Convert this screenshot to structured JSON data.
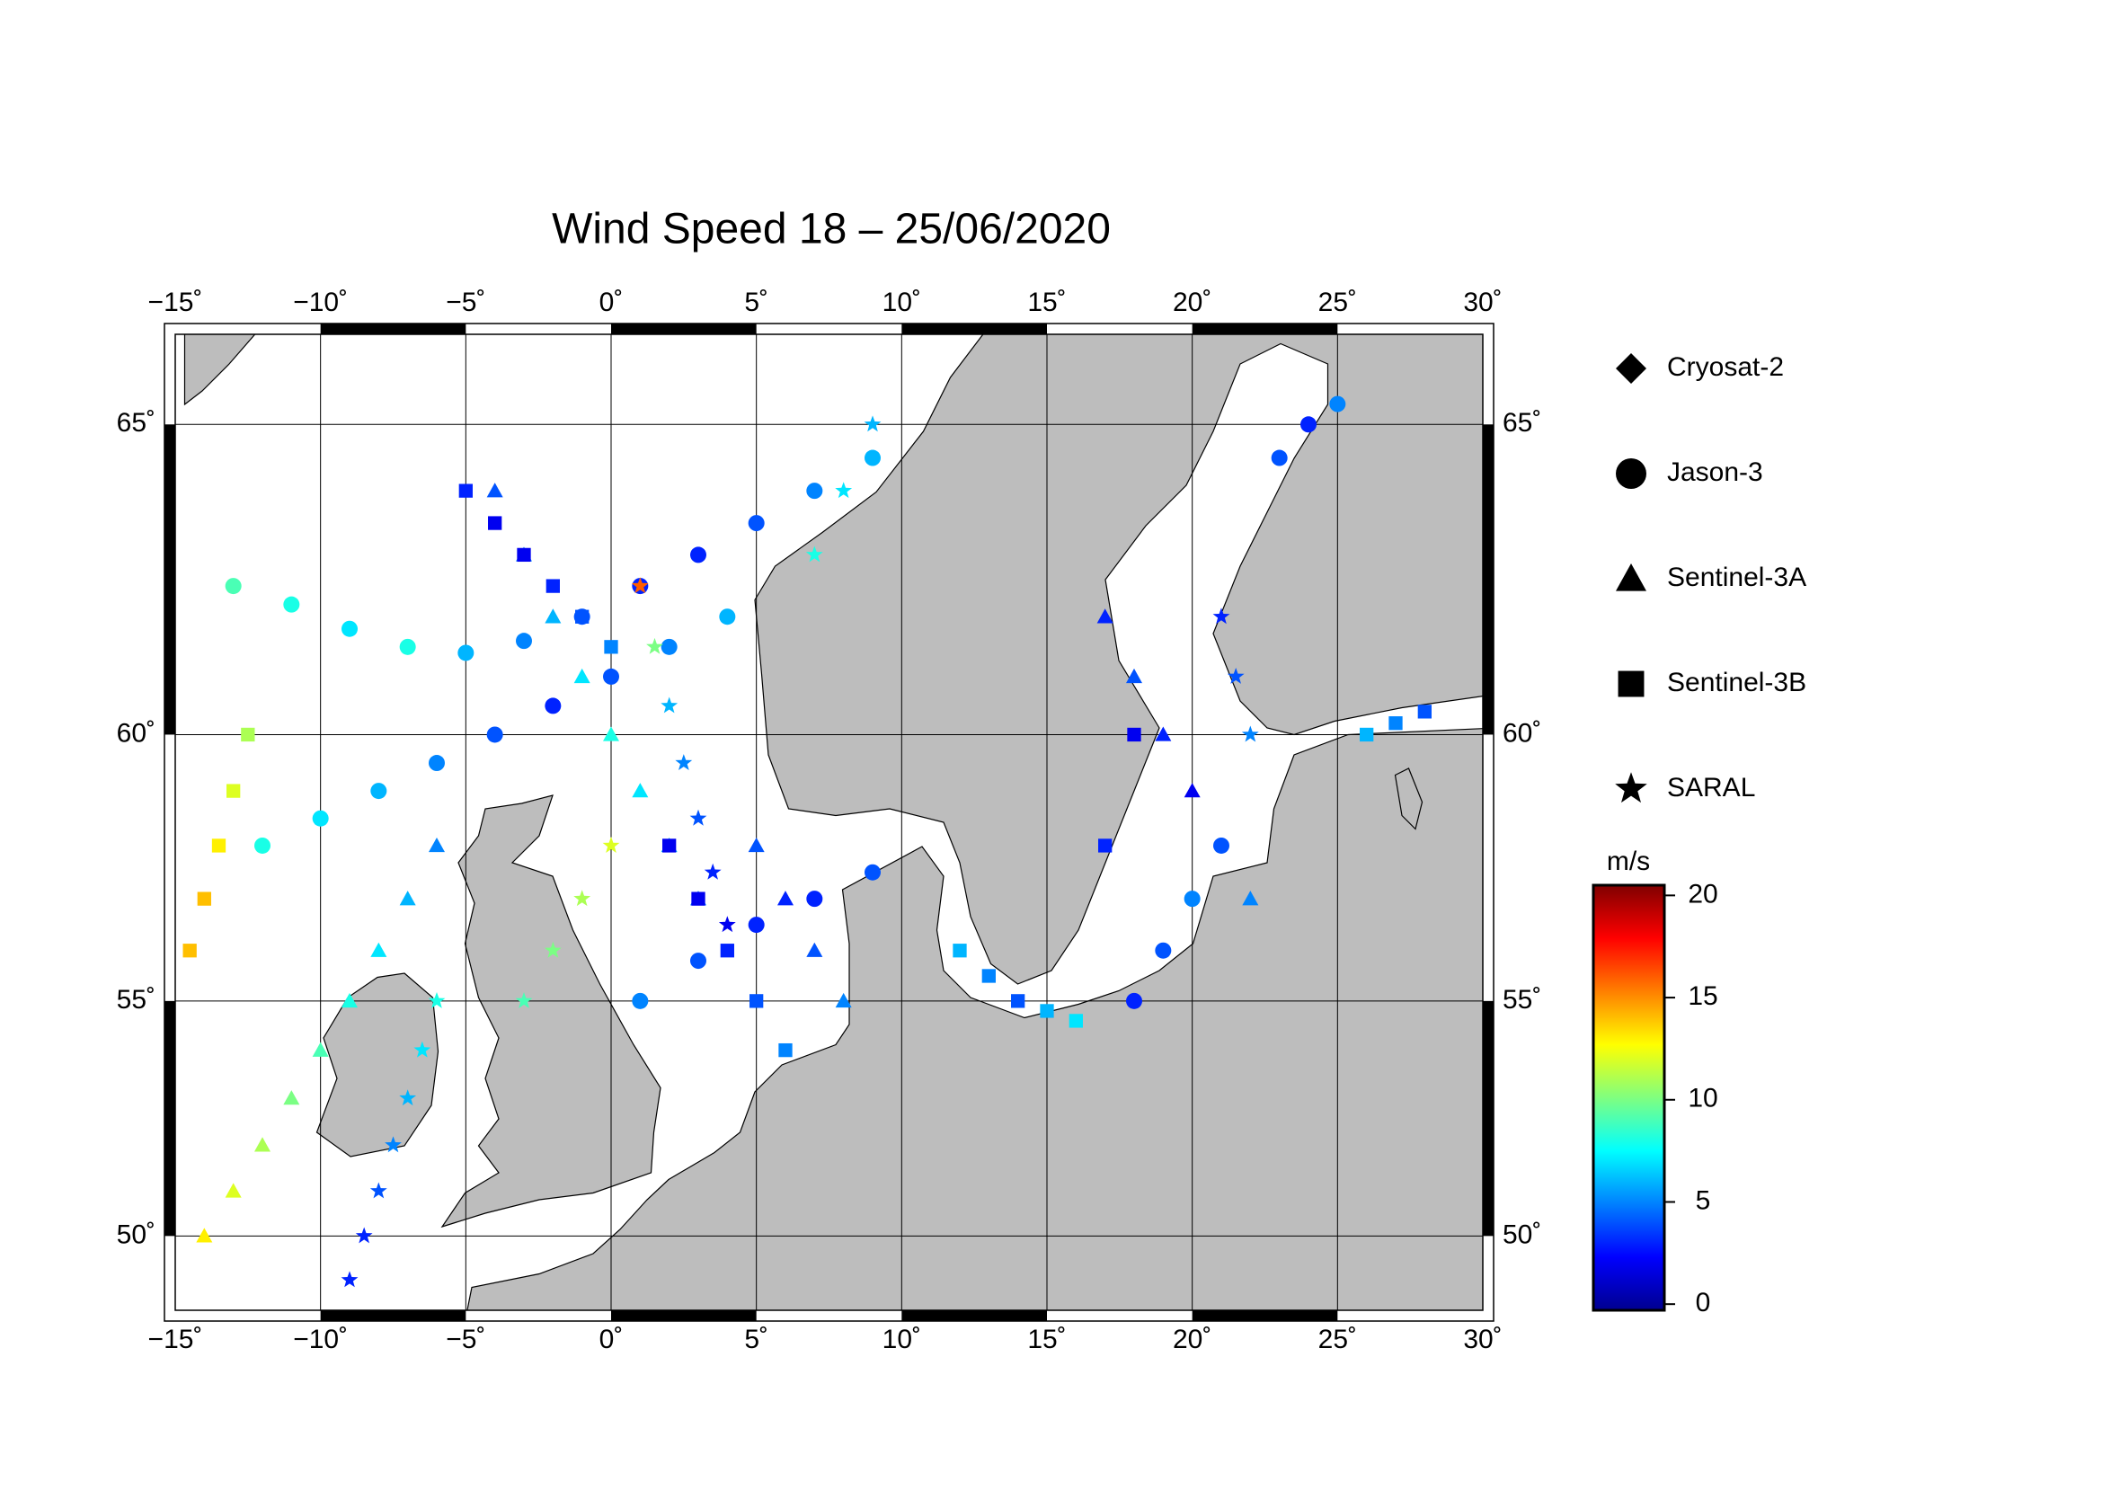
{
  "chart_data": {
    "type": "map",
    "projection": "mercator",
    "title": "Wind Speed 18 – 25/06/2020",
    "xlim": [
      -15,
      30
    ],
    "ylim": [
      48.3,
      66.3
    ],
    "xticks": [
      {
        "value": -15,
        "label": "−15˚"
      },
      {
        "value": -10,
        "label": "−10˚"
      },
      {
        "value": -5,
        "label": "−5˚"
      },
      {
        "value": 0,
        "label": "0˚"
      },
      {
        "value": 5,
        "label": "5˚"
      },
      {
        "value": 10,
        "label": "10˚"
      },
      {
        "value": 15,
        "label": "15˚"
      },
      {
        "value": 20,
        "label": "20˚"
      },
      {
        "value": 25,
        "label": "25˚"
      },
      {
        "value": 30,
        "label": "30˚"
      }
    ],
    "yticks": [
      {
        "value": 50,
        "label": "50˚"
      },
      {
        "value": 55,
        "label": "55˚"
      },
      {
        "value": 60,
        "label": "60˚"
      },
      {
        "value": 65,
        "label": "65˚"
      }
    ],
    "grid": true,
    "colormap": "jet",
    "colorbar": {
      "label": "m/s",
      "lim": [
        -0.3,
        20.5
      ],
      "ticks": [
        0,
        5,
        10,
        15,
        20
      ]
    },
    "series": [
      {
        "name": "Cryosat-2",
        "marker": "diamond",
        "lon": [],
        "lat": [],
        "values": []
      },
      {
        "name": "Jason-3",
        "marker": "circle",
        "lon": [
          -13,
          -11,
          -9,
          -7,
          -5,
          -3,
          -1,
          1,
          3,
          5,
          7,
          9,
          -12,
          -10,
          -8,
          -6,
          -4,
          -2,
          0,
          2,
          4,
          1,
          3,
          5,
          7,
          9,
          18,
          19,
          20,
          21,
          23,
          24,
          25
        ],
        "lat": [
          62.5,
          62.2,
          61.8,
          61.5,
          61.4,
          61.6,
          62,
          62.5,
          63,
          63.5,
          64,
          64.5,
          58,
          58.5,
          59,
          59.5,
          60,
          60.5,
          61,
          61.5,
          62,
          55,
          55.8,
          56.5,
          57,
          57.5,
          55,
          56,
          57,
          58,
          64.5,
          65,
          65.3
        ],
        "values": [
          9,
          8,
          7,
          8,
          6,
          5,
          4,
          3,
          3,
          4,
          5,
          6,
          8,
          7,
          6,
          5,
          4,
          3,
          4,
          5,
          6,
          5,
          4,
          3,
          3,
          4,
          3,
          4,
          5,
          4,
          4,
          3,
          5
        ]
      },
      {
        "name": "Sentinel-3A",
        "marker": "triangle",
        "lon": [
          -14,
          -13,
          -12,
          -11,
          -10,
          -9,
          -8,
          -7,
          -6,
          -4,
          -3,
          -2,
          -1,
          0,
          1,
          2,
          3,
          5,
          6,
          7,
          8,
          17,
          18,
          19,
          20,
          22
        ],
        "lat": [
          50,
          51,
          52,
          53,
          54,
          55,
          56,
          57,
          58,
          64,
          63,
          62,
          61,
          60,
          59,
          58,
          57,
          58,
          57,
          56,
          55,
          62,
          61,
          60,
          59,
          57
        ],
        "values": [
          13,
          12,
          11,
          10,
          9,
          8,
          7,
          6,
          5,
          4,
          5,
          6,
          7,
          8,
          7,
          6,
          5,
          4,
          3,
          4,
          5,
          3,
          4,
          3,
          2,
          5
        ]
      },
      {
        "name": "Sentinel-3B",
        "marker": "square",
        "lon": [
          -14.5,
          -14,
          -13.5,
          -13,
          -12.5,
          -5,
          -4,
          -3,
          -2,
          -1,
          0,
          2,
          3,
          4,
          5,
          6,
          12,
          13,
          14,
          15,
          16,
          17,
          18,
          26,
          27,
          28
        ],
        "lat": [
          56,
          57,
          58,
          59,
          60,
          64,
          63.5,
          63,
          62.5,
          62,
          61.5,
          58,
          57,
          56,
          55,
          54,
          56,
          55.5,
          55,
          54.8,
          54.6,
          58,
          60,
          60,
          60.2,
          60.4
        ],
        "values": [
          14,
          14,
          13,
          12,
          11,
          3,
          2,
          2,
          3,
          4,
          5,
          2,
          2,
          3,
          4,
          5,
          6,
          5,
          4,
          6,
          7,
          3,
          2,
          6,
          5,
          4
        ]
      },
      {
        "name": "SARAL",
        "marker": "star",
        "lon": [
          -9,
          -8.5,
          -8,
          -7.5,
          -7,
          -6.5,
          -6,
          1,
          1.5,
          2,
          2.5,
          3,
          3.5,
          4,
          -3,
          -2,
          -1,
          0,
          7,
          8,
          9,
          21,
          21.5,
          22
        ],
        "lat": [
          49,
          50,
          51,
          52,
          53,
          54,
          55,
          62.5,
          61.5,
          60.5,
          59.5,
          58.5,
          57.5,
          56.5,
          55,
          56,
          57,
          58,
          63,
          64,
          65,
          62,
          61,
          60
        ],
        "values": [
          3,
          3,
          4,
          5,
          6,
          7,
          8,
          16,
          10,
          6,
          5,
          4,
          3,
          2,
          9,
          10,
          11,
          12,
          8,
          7,
          6,
          3,
          4,
          5
        ]
      }
    ]
  }
}
